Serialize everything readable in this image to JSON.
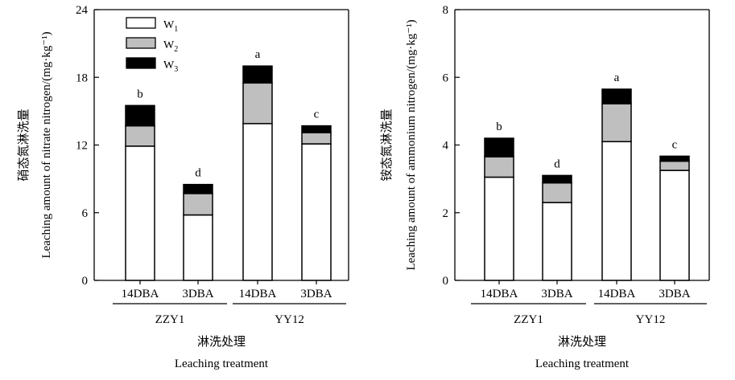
{
  "chart_data": [
    {
      "type": "bar",
      "stacked": true,
      "groups": [
        {
          "name": "ZZY1",
          "categories": [
            "14DBA",
            "3DBA"
          ]
        },
        {
          "name": "YY12",
          "categories": [
            "14DBA",
            "3DBA"
          ]
        }
      ],
      "categories": [
        "14DBA",
        "3DBA",
        "14DBA",
        "3DBA"
      ],
      "series": [
        {
          "name": "W1",
          "label_main": "W",
          "label_sub": "1",
          "color": "#ffffff",
          "values": [
            11.9,
            5.8,
            13.9,
            12.1
          ]
        },
        {
          "name": "W2",
          "label_main": "W",
          "label_sub": "2",
          "color": "#bfbfbf",
          "values": [
            1.8,
            1.9,
            3.6,
            1.0
          ]
        },
        {
          "name": "W3",
          "label_main": "W",
          "label_sub": "3",
          "color": "#000000",
          "values": [
            1.8,
            0.8,
            1.5,
            0.6
          ]
        }
      ],
      "significance": [
        "b",
        "d",
        "a",
        "c"
      ],
      "ylabel_cn": "硝态氮淋洗量",
      "ylabel_en": "Leaching amount of nitrate nitrogen/(mg·kg⁻¹)",
      "xlabel_cn": "淋洗处理",
      "xlabel_en": "Leaching treatment",
      "ylim": [
        0,
        24
      ],
      "yticks": [
        0,
        6,
        12,
        18,
        24
      ],
      "grid": false,
      "legend": "top-left"
    },
    {
      "type": "bar",
      "stacked": true,
      "groups": [
        {
          "name": "ZZY1",
          "categories": [
            "14DBA",
            "3DBA"
          ]
        },
        {
          "name": "YY12",
          "categories": [
            "14DBA",
            "3DBA"
          ]
        }
      ],
      "categories": [
        "14DBA",
        "3DBA",
        "14DBA",
        "3DBA"
      ],
      "series": [
        {
          "name": "W1",
          "color": "#ffffff",
          "values": [
            3.05,
            2.3,
            4.1,
            3.25
          ]
        },
        {
          "name": "W2",
          "color": "#bfbfbf",
          "values": [
            0.6,
            0.58,
            1.12,
            0.27
          ]
        },
        {
          "name": "W3",
          "color": "#000000",
          "values": [
            0.55,
            0.22,
            0.43,
            0.15
          ]
        }
      ],
      "significance": [
        "b",
        "d",
        "a",
        "c"
      ],
      "ylabel_cn": "铵态氮淋洗量",
      "ylabel_en": "Leaching amount of ammonium nitrogen/(mg·kg⁻¹)",
      "xlabel_cn": "淋洗处理",
      "xlabel_en": "Leaching treatment",
      "ylim": [
        0,
        8
      ],
      "yticks": [
        0,
        2,
        4,
        6,
        8
      ],
      "grid": false,
      "legend": "none"
    }
  ]
}
